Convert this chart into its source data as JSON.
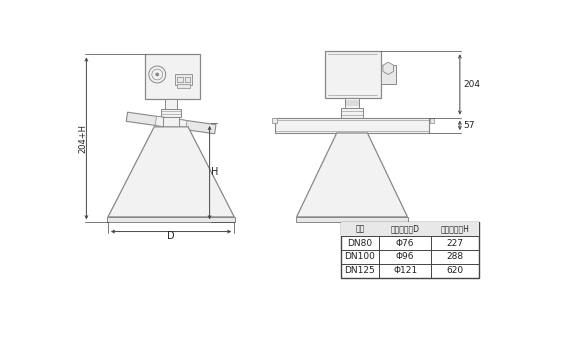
{
  "background_color": "#ffffff",
  "line_color": "#888888",
  "dark_line_color": "#444444",
  "text_color": "#222222",
  "table_data": {
    "headers": [
      "法兰",
      "测量口直径D",
      "测量口高度H"
    ],
    "rows": [
      [
        "DN80",
        "Φ76",
        "227"
      ],
      [
        "DN100",
        "Φ96",
        "288"
      ],
      [
        "DN125",
        "Φ121",
        "620"
      ]
    ]
  },
  "dim_204": "204",
  "dim_57": "57",
  "dim_H": "H",
  "dim_204H": "204+H",
  "dim_D": "D"
}
